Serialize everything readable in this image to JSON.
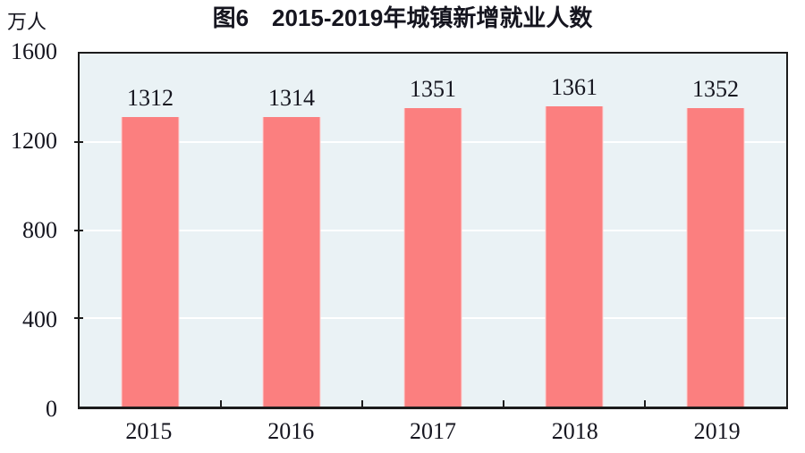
{
  "chart_data": {
    "type": "bar",
    "title": "图6　2015-2019年城镇新增就业人数",
    "unit": "万人",
    "categories": [
      "2015",
      "2016",
      "2017",
      "2018",
      "2019"
    ],
    "values": [
      1312,
      1314,
      1351,
      1361,
      1352
    ],
    "yticks": [
      0,
      400,
      800,
      1200,
      1600
    ],
    "ylim": [
      0,
      1600
    ],
    "xlabel": "",
    "ylabel": "万人",
    "grid": true,
    "legend": false,
    "colors": {
      "bar": "#fb7f7f",
      "plot_background": "#eaf2f5",
      "gridline": "#ffffff",
      "axis": "#1c1c1c",
      "text": "#15151f",
      "page_background": "#ffffff"
    }
  }
}
